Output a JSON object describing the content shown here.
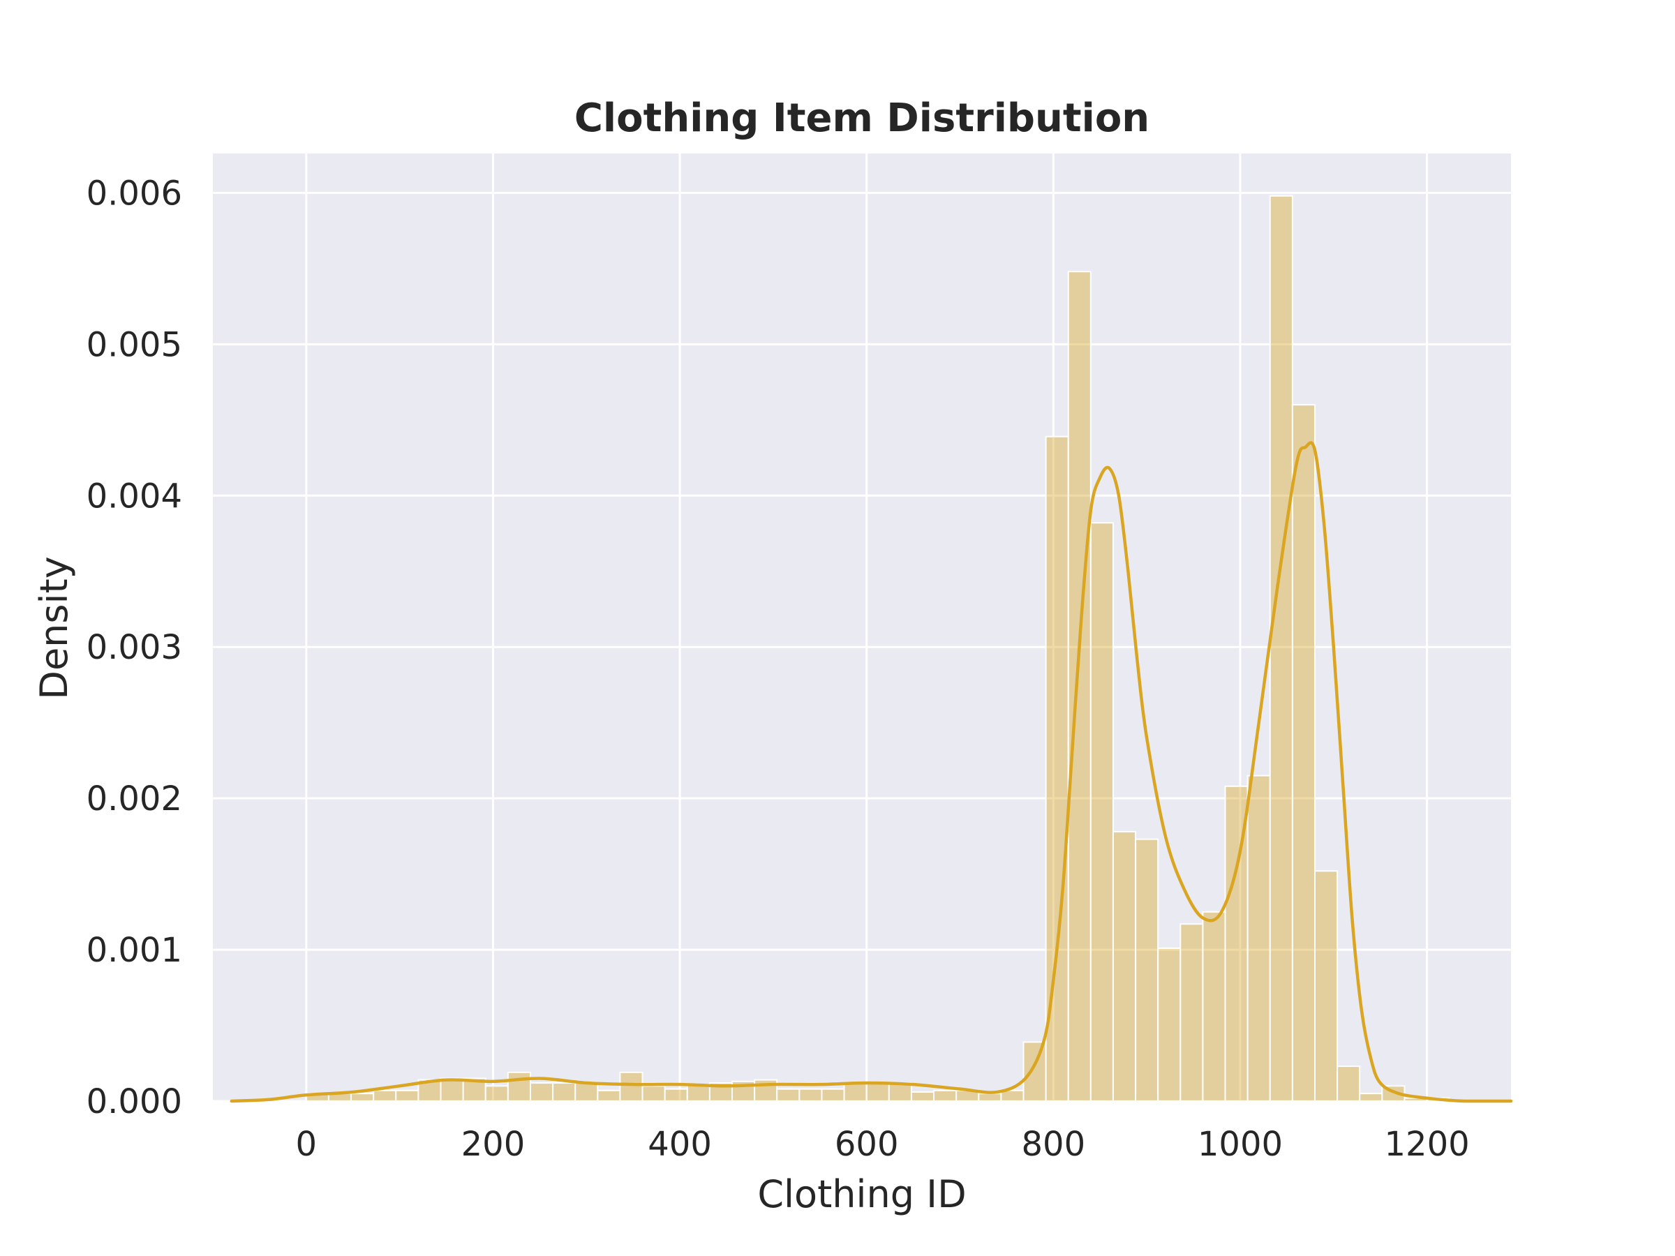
{
  "chart_data": {
    "type": "bar",
    "title": "Clothing Item Distribution",
    "xlabel": "Clothing ID",
    "ylabel": "Density",
    "xlim": [
      -100,
      1290
    ],
    "ylim": [
      0,
      0.00626
    ],
    "x_ticks": [
      {
        "value": 0,
        "label": "0"
      },
      {
        "value": 200,
        "label": "200"
      },
      {
        "value": 400,
        "label": "400"
      },
      {
        "value": 600,
        "label": "600"
      },
      {
        "value": 800,
        "label": "800"
      },
      {
        "value": 1000,
        "label": "1000"
      },
      {
        "value": 1200,
        "label": "1200"
      }
    ],
    "y_ticks": [
      {
        "value": 0.0,
        "label": "0.000"
      },
      {
        "value": 0.001,
        "label": "0.001"
      },
      {
        "value": 0.002,
        "label": "0.002"
      },
      {
        "value": 0.003,
        "label": "0.003"
      },
      {
        "value": 0.004,
        "label": "0.004"
      },
      {
        "value": 0.005,
        "label": "0.005"
      },
      {
        "value": 0.006,
        "label": "0.006"
      }
    ],
    "grid": true,
    "colors": {
      "plot_background": "#eaeaf2",
      "grid": "#ffffff",
      "bar_fill": "#daa520",
      "bar_opacity": 0.4,
      "bar_edge": "#ffffff",
      "kde_line": "#daa520"
    },
    "histogram": {
      "bin_edges": [
        0,
        24,
        48,
        72,
        96,
        120,
        144,
        168,
        192,
        216,
        240,
        264,
        288,
        312,
        336,
        360,
        384,
        408,
        432,
        456,
        480,
        504,
        528,
        552,
        576,
        600,
        624,
        648,
        672,
        696,
        720,
        744,
        768,
        792,
        816,
        840,
        864,
        888,
        912,
        936,
        960,
        984,
        1008,
        1032,
        1056,
        1080,
        1104,
        1128,
        1152,
        1176,
        1200,
        1224
      ],
      "densities": [
        5e-05,
        5e-05,
        5e-05,
        7e-05,
        7e-05,
        0.00014,
        0.00015,
        0.00015,
        0.0001,
        0.00019,
        0.00012,
        0.00012,
        0.00012,
        7e-05,
        0.00019,
        0.0001,
        8e-05,
        0.00011,
        0.00012,
        0.00013,
        0.00014,
        8e-05,
        8e-05,
        8e-05,
        0.00012,
        0.00012,
        0.00012,
        6e-05,
        7e-05,
        7e-05,
        5e-05,
        7e-05,
        0.00039,
        0.00439,
        0.00548,
        0.00382,
        0.00178,
        0.00173,
        0.00101,
        0.00117,
        0.00125,
        0.00208,
        0.00215,
        0.00598,
        0.0046,
        0.00152,
        0.00023,
        5e-05,
        0.0001,
        2e-05,
        2e-05
      ]
    },
    "kde": {
      "x": [
        -80,
        -40,
        0,
        50,
        100,
        150,
        200,
        250,
        300,
        350,
        400,
        450,
        500,
        550,
        600,
        650,
        700,
        740,
        770,
        790,
        800,
        810,
        820,
        830,
        840,
        850,
        860,
        870,
        880,
        890,
        900,
        920,
        940,
        960,
        980,
        1000,
        1020,
        1040,
        1060,
        1070,
        1080,
        1090,
        1100,
        1110,
        1120,
        1130,
        1140,
        1150,
        1170,
        1200,
        1240,
        1290
      ],
      "y": [
        0.0,
        1e-05,
        4e-05,
        6e-05,
        0.0001,
        0.00014,
        0.00013,
        0.00015,
        0.00012,
        0.00011,
        0.00011,
        0.0001,
        0.00011,
        0.00011,
        0.00012,
        0.00011,
        8e-05,
        6e-05,
        0.00015,
        0.0004,
        0.0008,
        0.0014,
        0.0023,
        0.0032,
        0.0039,
        0.00412,
        0.00418,
        0.004,
        0.0035,
        0.0029,
        0.0024,
        0.00175,
        0.0014,
        0.00121,
        0.00125,
        0.00165,
        0.0025,
        0.0034,
        0.0042,
        0.00432,
        0.0043,
        0.0038,
        0.003,
        0.0021,
        0.0012,
        0.0006,
        0.00028,
        0.00012,
        5e-05,
        2e-05,
        0.0,
        0.0
      ]
    }
  }
}
